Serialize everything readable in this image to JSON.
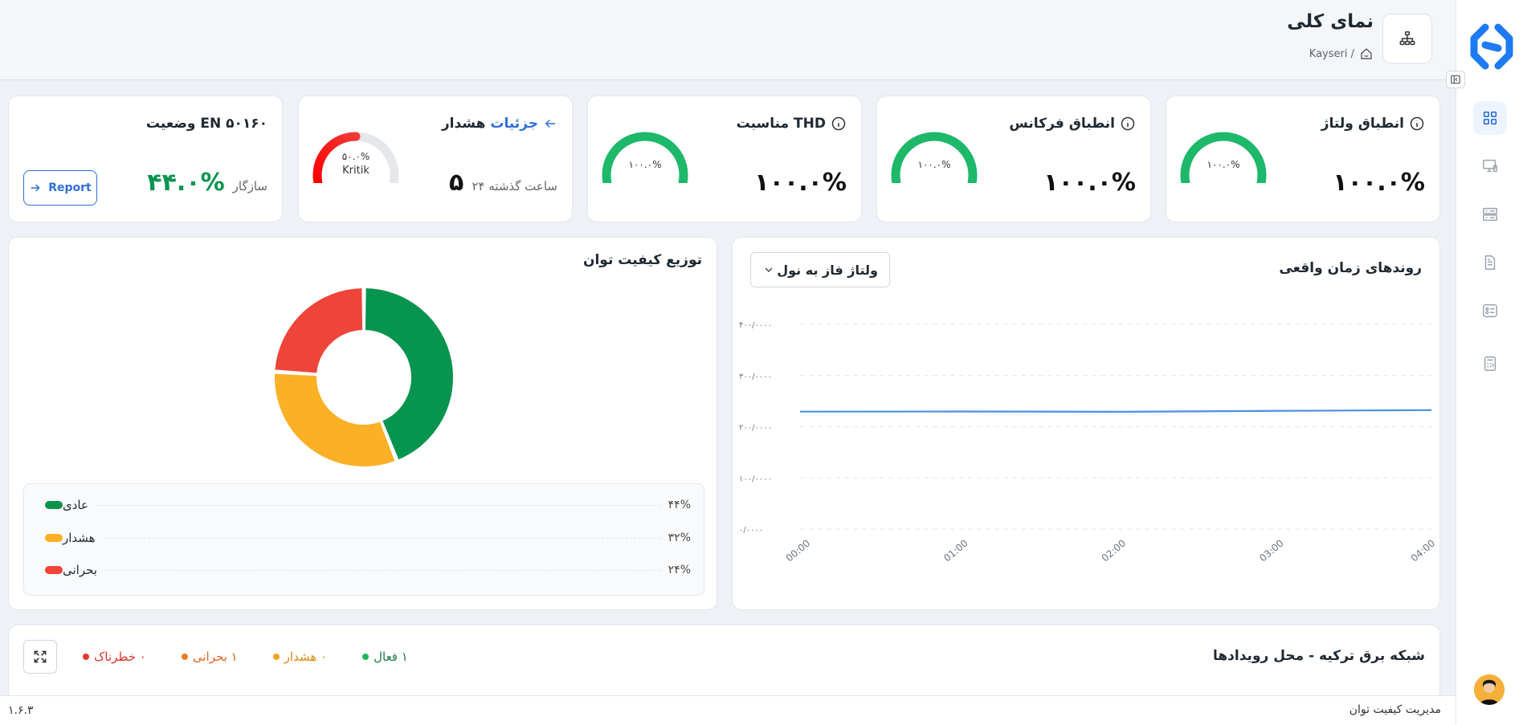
{
  "header": {
    "title": "نمای کلی",
    "breadcrumb": "Kayseri /"
  },
  "kpis": {
    "voltage": {
      "title": "انطباق ولتاژ",
      "gauge_label": "۱۰۰.۰%",
      "gauge_percent": 100,
      "value": "۱۰۰.۰%"
    },
    "frequency": {
      "title": "انطباق فرکانس",
      "gauge_label": "۱۰۰.۰%",
      "gauge_percent": 100,
      "value": "۱۰۰.۰%"
    },
    "thd": {
      "title": "مناسبت THD",
      "gauge_label": "۱۰۰.۰%",
      "gauge_percent": 100,
      "value": "۱۰۰.۰%"
    },
    "alarm": {
      "title": "هشدار",
      "link": "جزئیات",
      "gauge_label": "۵۰.۰%",
      "gauge_status": "Kritik",
      "gauge_percent": 50,
      "count": "۵",
      "period": "۲۴ ساعت گذشته"
    },
    "en50160": {
      "title": "وضعیت EN ۵۰۱۶۰",
      "value": "۴۴.۰%",
      "status": "سازگار",
      "button": "Report"
    }
  },
  "trends": {
    "title": "روندهای زمان واقعی",
    "select_value": "ولتاژ فاز به نول"
  },
  "distribution": {
    "title": "توزیع کیفیت توان",
    "legend": [
      {
        "label": "عادی",
        "value": "۴۴%",
        "color": "#07944e"
      },
      {
        "label": "هشدار",
        "value": "۳۲%",
        "color": "#fbb025"
      },
      {
        "label": "بحرانی",
        "value": "۲۴%",
        "color": "#ef443a"
      }
    ]
  },
  "events": {
    "title": "شبکه برق ترکیه - محل رویدادها",
    "stats": [
      {
        "label": "۱ فعال",
        "color": "#22b55f",
        "text_color": "#1a7f49"
      },
      {
        "label": "۰ هشدار",
        "color": "#f4a11e",
        "text_color": "#d98a12"
      },
      {
        "label": "۱ بحرانی",
        "color": "#f07a2a",
        "text_color": "#e0641c"
      },
      {
        "label": "۰ خطرناک",
        "color": "#e53a2f",
        "text_color": "#d8352b"
      }
    ]
  },
  "footer": {
    "app_name": "مدیریت کیفیت توان",
    "version": "۱.۶.۳"
  },
  "sidebar": {
    "items": [
      {
        "icon": "dashboard-grid-icon",
        "active": true
      },
      {
        "icon": "monitor-icon",
        "active": false
      },
      {
        "icon": "server-icon",
        "active": false
      },
      {
        "icon": "document-icon",
        "active": false
      },
      {
        "icon": "list-card-icon",
        "active": false
      },
      {
        "icon": "calculator-icon",
        "active": false
      }
    ]
  },
  "chart_data": [
    {
      "type": "line",
      "title": "روندهای زمان واقعی",
      "x": [
        "00:00",
        "01:00",
        "02:00",
        "03:00",
        "04:00"
      ],
      "series": [
        {
          "values": [
            229.5,
            229.8,
            229.2,
            231.0,
            232.5
          ],
          "color": "#4a90e2"
        }
      ],
      "y_ticks": [
        "۰/۰۰۰۰",
        "۱۰۰/۰۰۰۰",
        "۲۰۰/۰۰۰۰",
        "۳۰۰/۰۰۰۰",
        "۴۰۰/۰۰۰۰"
      ],
      "ylim": [
        0,
        400
      ],
      "grid": true
    },
    {
      "type": "pie",
      "categories": [
        "عادی",
        "هشدار",
        "بحرانی"
      ],
      "values": [
        44,
        32,
        24
      ],
      "colors": [
        "#07944e",
        "#fbb025",
        "#ef443a"
      ]
    }
  ]
}
